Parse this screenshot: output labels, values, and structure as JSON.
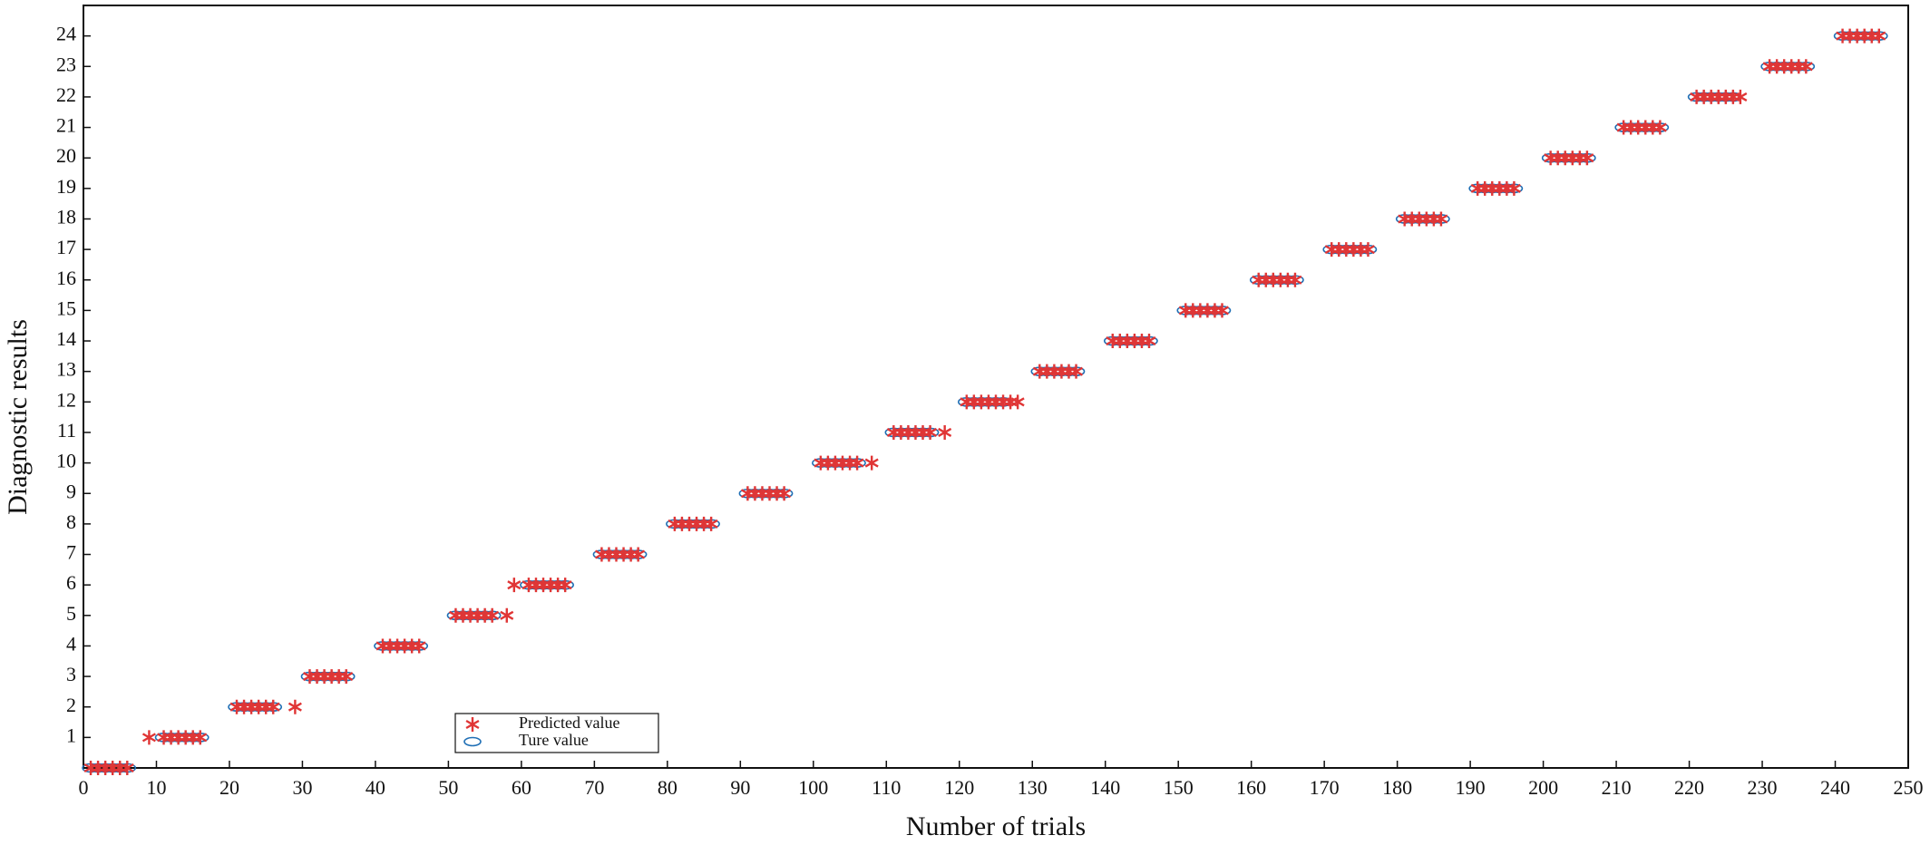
{
  "chart_data": {
    "type": "scatter",
    "xlabel": "Number of trials",
    "ylabel": "Diagnostic results",
    "x": [
      1,
      2,
      3,
      4,
      5,
      6,
      9,
      11,
      12,
      13,
      14,
      15,
      16,
      21,
      22,
      23,
      24,
      25,
      26,
      29,
      31,
      32,
      33,
      34,
      35,
      36,
      41,
      42,
      43,
      44,
      45,
      46,
      51,
      52,
      53,
      54,
      55,
      56,
      58,
      59,
      61,
      62,
      63,
      64,
      65,
      66,
      71,
      72,
      73,
      74,
      75,
      76,
      81,
      82,
      83,
      84,
      85,
      86,
      91,
      92,
      93,
      94,
      95,
      96,
      101,
      102,
      103,
      104,
      105,
      106,
      108,
      111,
      112,
      113,
      114,
      115,
      116,
      118,
      121,
      122,
      123,
      124,
      125,
      126,
      127,
      128,
      131,
      132,
      133,
      134,
      135,
      136,
      141,
      142,
      143,
      144,
      145,
      146,
      151,
      152,
      153,
      154,
      155,
      156,
      161,
      162,
      163,
      164,
      165,
      166,
      171,
      172,
      173,
      174,
      175,
      176,
      181,
      182,
      183,
      184,
      185,
      186,
      191,
      192,
      193,
      194,
      195,
      196,
      201,
      202,
      203,
      204,
      205,
      206,
      211,
      212,
      213,
      214,
      215,
      216,
      221,
      222,
      223,
      224,
      225,
      226,
      227,
      231,
      232,
      233,
      234,
      235,
      236,
      241,
      242,
      243,
      244,
      245,
      246
    ],
    "series": [
      {
        "name": "Predicted value",
        "color": "#e03535",
        "marker": "star",
        "values": [
          0,
          0,
          0,
          0,
          0,
          0,
          1,
          1,
          1,
          1,
          1,
          1,
          1,
          2,
          2,
          2,
          2,
          2,
          2,
          2,
          3,
          3,
          3,
          3,
          3,
          3,
          4,
          4,
          4,
          4,
          4,
          4,
          5,
          5,
          5,
          5,
          5,
          5,
          5,
          6,
          6,
          6,
          6,
          6,
          6,
          6,
          7,
          7,
          7,
          7,
          7,
          7,
          8,
          8,
          8,
          8,
          8,
          8,
          9,
          9,
          9,
          9,
          9,
          9,
          10,
          10,
          10,
          10,
          10,
          10,
          10,
          11,
          11,
          11,
          11,
          11,
          11,
          11,
          12,
          12,
          12,
          12,
          12,
          12,
          12,
          12,
          13,
          13,
          13,
          13,
          13,
          13,
          14,
          14,
          14,
          14,
          14,
          14,
          15,
          15,
          15,
          15,
          15,
          15,
          16,
          16,
          16,
          16,
          16,
          16,
          17,
          17,
          17,
          17,
          17,
          17,
          18,
          18,
          18,
          18,
          18,
          18,
          19,
          19,
          19,
          19,
          19,
          19,
          20,
          20,
          20,
          20,
          20,
          20,
          21,
          21,
          21,
          21,
          21,
          21,
          22,
          22,
          22,
          22,
          22,
          22,
          22,
          23,
          23,
          23,
          23,
          23,
          23,
          24,
          24,
          24,
          24,
          24,
          24
        ]
      },
      {
        "name": "Ture value",
        "color": "#1f6fb5",
        "marker": "circle",
        "values": [
          0,
          0,
          0,
          0,
          0,
          0,
          null,
          1,
          1,
          1,
          1,
          1,
          1,
          2,
          2,
          2,
          2,
          2,
          2,
          null,
          3,
          3,
          3,
          3,
          3,
          3,
          4,
          4,
          4,
          4,
          4,
          4,
          5,
          5,
          5,
          5,
          5,
          5,
          null,
          null,
          6,
          6,
          6,
          6,
          6,
          6,
          7,
          7,
          7,
          7,
          7,
          7,
          8,
          8,
          8,
          8,
          8,
          8,
          9,
          9,
          9,
          9,
          9,
          9,
          10,
          10,
          10,
          10,
          10,
          10,
          null,
          11,
          11,
          11,
          11,
          11,
          11,
          null,
          12,
          12,
          12,
          12,
          12,
          12,
          null,
          null,
          13,
          13,
          13,
          13,
          13,
          13,
          14,
          14,
          14,
          14,
          14,
          14,
          15,
          15,
          15,
          15,
          15,
          15,
          16,
          16,
          16,
          16,
          16,
          16,
          17,
          17,
          17,
          17,
          17,
          17,
          18,
          18,
          18,
          18,
          18,
          18,
          19,
          19,
          19,
          19,
          19,
          19,
          20,
          20,
          20,
          20,
          20,
          20,
          21,
          21,
          21,
          21,
          21,
          21,
          22,
          22,
          22,
          22,
          22,
          22,
          null,
          23,
          23,
          23,
          23,
          23,
          23,
          24,
          24,
          24,
          24,
          24,
          24
        ]
      }
    ],
    "xlim": [
      0,
      250
    ],
    "xticks": [
      0,
      10,
      20,
      30,
      40,
      50,
      60,
      70,
      80,
      90,
      100,
      110,
      120,
      130,
      140,
      150,
      160,
      170,
      180,
      190,
      200,
      210,
      220,
      230,
      240,
      250
    ],
    "ylim": [
      0,
      25
    ],
    "yticks": [
      1,
      2,
      3,
      4,
      5,
      6,
      7,
      8,
      9,
      10,
      11,
      12,
      13,
      14,
      15,
      16,
      17,
      18,
      19,
      20,
      21,
      22,
      23,
      24
    ],
    "grid": false,
    "legend": "lower left"
  }
}
